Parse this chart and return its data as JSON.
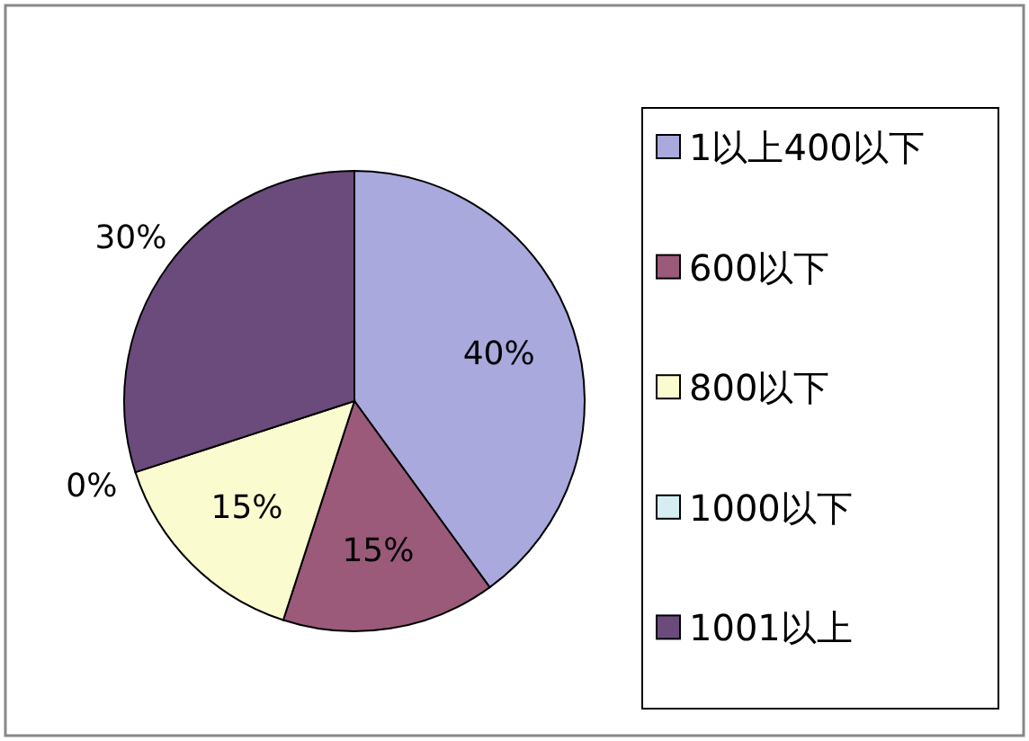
{
  "chart_data": {
    "type": "pie",
    "categories": [
      "1以上400以下",
      "600以下",
      "800以下",
      "1000以下",
      "1001以上"
    ],
    "values": [
      40,
      15,
      15,
      0,
      30
    ],
    "colors": [
      "#a9a9dd",
      "#9b5a7a",
      "#fbfbd0",
      "#d6eef2",
      "#6b4b7b"
    ],
    "value_labels": [
      "40%",
      "15%",
      "15%",
      "0%",
      "30%"
    ],
    "legend": "right"
  }
}
